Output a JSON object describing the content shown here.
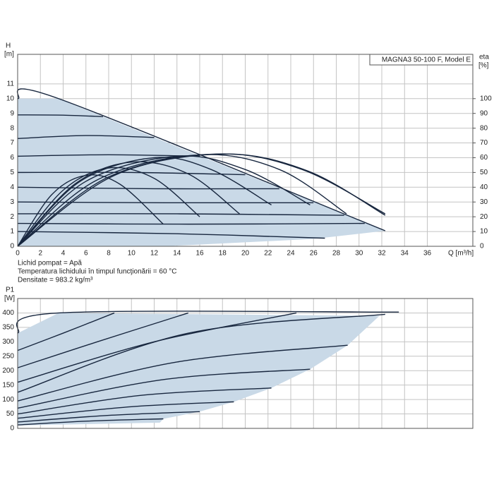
{
  "chart_data": [
    {
      "type": "line",
      "title": "MAGNA3 50-100 F, Model E",
      "ylabel": "H",
      "yunit": "[m]",
      "y2label": "eta",
      "y2unit": "[%]",
      "xlabel": "Q [m³/h]",
      "notes": [
        "Lichid pompat = Apă",
        "Temperatura lichidului în timpul funcţionării = 60 °C",
        "Densitate = 983.2 kg/m³"
      ],
      "xlim": [
        0,
        40
      ],
      "xticks": [
        0,
        2,
        4,
        6,
        8,
        10,
        12,
        14,
        16,
        18,
        20,
        22,
        24,
        26,
        28,
        30,
        32,
        34,
        36
      ],
      "xtick_labels": true,
      "ylim": [
        0,
        13
      ],
      "yticks": [
        0,
        1,
        2,
        3,
        4,
        5,
        6,
        7,
        8,
        9,
        10,
        11
      ],
      "y2lim": [
        0,
        130
      ],
      "y2ticks": [
        0,
        10,
        20,
        30,
        40,
        50,
        60,
        70,
        80,
        90,
        100
      ],
      "grid": true,
      "envelope": {
        "x": [
          0,
          0,
          3.6,
          32.3,
          26,
          13,
          0
        ],
        "values": [
          0,
          10,
          10,
          1.05,
          0.5,
          0,
          0
        ],
        "color": "#c9d9e7"
      },
      "color": "#18273f",
      "series": [
        {
          "x": [
            0,
            3.6,
            32.3
          ],
          "values": [
            10,
            10,
            1.05
          ]
        },
        {
          "x": [
            0,
            4,
            7.5
          ],
          "values": [
            8.9,
            8.88,
            8.78
          ]
        },
        {
          "x": [
            0,
            6,
            12
          ],
          "values": [
            7.3,
            7.5,
            7.37
          ]
        },
        {
          "x": [
            0,
            8,
            16
          ],
          "values": [
            6.1,
            6.2,
            6.1
          ]
        },
        {
          "x": [
            0,
            10,
            20
          ],
          "values": [
            5.0,
            5.0,
            4.85
          ]
        },
        {
          "x": [
            0,
            12,
            23
          ],
          "values": [
            4.0,
            3.9,
            3.9
          ]
        },
        {
          "x": [
            0,
            13,
            26
          ],
          "values": [
            3.0,
            2.95,
            2.95
          ]
        },
        {
          "x": [
            0,
            14,
            28.7
          ],
          "values": [
            2.2,
            2.2,
            2.1
          ]
        },
        {
          "x": [
            0,
            15,
            30.5
          ],
          "values": [
            1.55,
            1.5,
            1.55
          ]
        },
        {
          "x": [
            0,
            14,
            27
          ],
          "values": [
            1.0,
            0.85,
            0.55
          ]
        },
        {
          "axis": "y2",
          "x": [
            0,
            3,
            6,
            9,
            12.8
          ],
          "values": [
            0,
            35,
            48,
            42,
            15
          ]
        },
        {
          "axis": "y2",
          "x": [
            0,
            4,
            8,
            12,
            16
          ],
          "values": [
            0,
            38,
            53,
            46,
            20
          ]
        },
        {
          "axis": "y2",
          "x": [
            0,
            5,
            10,
            15,
            19.5
          ],
          "values": [
            0,
            42,
            57,
            49,
            22
          ]
        },
        {
          "axis": "y2",
          "x": [
            0,
            5.5,
            12,
            17,
            22.3
          ],
          "values": [
            0,
            44,
            60,
            52,
            28
          ]
        },
        {
          "axis": "y2",
          "x": [
            0,
            6,
            14,
            20,
            25.7
          ],
          "values": [
            0,
            44,
            61,
            52,
            28
          ]
        },
        {
          "axis": "y2",
          "x": [
            0,
            7,
            16,
            23,
            28.9
          ],
          "values": [
            0,
            45,
            62,
            52,
            22
          ]
        },
        {
          "axis": "y2",
          "x": [
            0,
            8,
            17.5,
            25,
            32.3
          ],
          "values": [
            0,
            47,
            62.5,
            52,
            22
          ]
        },
        {
          "axis": "y2",
          "x": [
            0,
            8.5,
            18,
            25.5,
            32.3
          ],
          "values": [
            0,
            48,
            62.5,
            51,
            21
          ]
        }
      ]
    },
    {
      "type": "line",
      "ylabel": "P1",
      "yunit": "[W]",
      "xlim": [
        0,
        40
      ],
      "xticks": [
        0,
        2,
        4,
        6,
        8,
        10,
        12,
        14,
        16,
        18,
        20,
        22,
        24,
        26,
        28,
        30,
        32,
        34,
        36
      ],
      "xtick_labels": false,
      "ylim": [
        0,
        450
      ],
      "yticks": [
        0,
        50,
        100,
        150,
        200,
        250,
        300,
        350,
        400
      ],
      "grid": true,
      "envelope": {
        "x": [
          0,
          0,
          3.6,
          31.8,
          29,
          25.7,
          22.3,
          19,
          16,
          12.8,
          12.5,
          0
        ],
        "values": [
          10,
          330,
          400,
          390,
          288,
          205,
          140,
          92,
          58,
          33,
          20,
          10
        ],
        "color": "#c9d9e7"
      },
      "color": "#18273f",
      "series": [
        {
          "x": [
            0,
            3.6,
            33.5
          ],
          "values": [
            330,
            400,
            403
          ]
        },
        {
          "x": [
            0,
            4,
            8.5
          ],
          "values": [
            270,
            330,
            400
          ]
        },
        {
          "x": [
            0,
            7,
            15
          ],
          "values": [
            210,
            300,
            400
          ]
        },
        {
          "x": [
            0,
            12,
            24.5
          ],
          "values": [
            160,
            300,
            400
          ]
        },
        {
          "x": [
            0,
            15,
            32.3
          ],
          "values": [
            125,
            330,
            395
          ]
        },
        {
          "x": [
            0,
            14,
            29
          ],
          "values": [
            95,
            230,
            288
          ]
        },
        {
          "x": [
            0,
            13,
            25.7
          ],
          "values": [
            70,
            170,
            205
          ]
        },
        {
          "x": [
            0,
            11,
            22.3
          ],
          "values": [
            50,
            115,
            140
          ]
        },
        {
          "x": [
            0,
            10,
            19
          ],
          "values": [
            35,
            75,
            92
          ]
        },
        {
          "x": [
            0,
            8,
            16
          ],
          "values": [
            22,
            45,
            58
          ]
        },
        {
          "x": [
            0,
            6,
            12.8
          ],
          "values": [
            12,
            25,
            33
          ]
        }
      ]
    }
  ]
}
